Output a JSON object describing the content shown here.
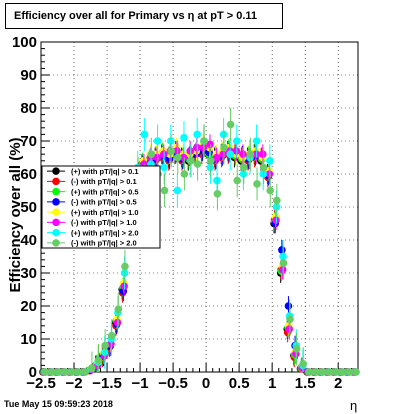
{
  "title": "Efficiency over all for Primary vs   η at pT > 0.11",
  "footer": "Tue May 15 09:59:23 2018",
  "chart_data": {
    "type": "scatter",
    "title": "Efficiency over all for Primary vs   η at pT > 0.11",
    "xlabel": "η",
    "ylabel": "Efficiency over all (%)",
    "xlim": [
      -2.5,
      2.3
    ],
    "ylim": [
      0,
      100
    ],
    "xticks": [
      "−2.5",
      "−2",
      "−1.5",
      "−1",
      "−0.5",
      "0",
      "0.5",
      "1",
      "1.5",
      "2"
    ],
    "yticks": [
      "0",
      "10",
      "20",
      "30",
      "40",
      "50",
      "60",
      "70",
      "80",
      "90",
      "100"
    ],
    "grid": true,
    "legend_placement": "middle-left",
    "x": [
      -2.45,
      -2.35,
      -2.25,
      -2.15,
      -2.05,
      -1.95,
      -1.85,
      -1.75,
      -1.65,
      -1.55,
      -1.45,
      -1.35,
      -1.25,
      -1.15,
      -1.05,
      -0.95,
      -0.85,
      -0.75,
      -0.65,
      -0.55,
      -0.45,
      -0.35,
      -0.25,
      -0.15,
      -0.05,
      0.05,
      0.15,
      0.25,
      0.35,
      0.45,
      0.55,
      0.65,
      0.75,
      0.85,
      0.95,
      1.05,
      1.15,
      1.25,
      1.35,
      1.45,
      1.55,
      1.65,
      1.75,
      1.85,
      1.95,
      2.05,
      2.15,
      2.25
    ],
    "series": [
      {
        "name": "(+) with pT/|q| > 0.1",
        "color": "#000000",
        "values": [
          0,
          0,
          0,
          0,
          0,
          0,
          0,
          0.5,
          2,
          5,
          8,
          15,
          25,
          42,
          58,
          63,
          64,
          65,
          66,
          65,
          66,
          65,
          64,
          66,
          67,
          66,
          65,
          66,
          67,
          65,
          64,
          65,
          66,
          64,
          60,
          45,
          30,
          13,
          5,
          1,
          0,
          0,
          0,
          0,
          0,
          0,
          0,
          0
        ]
      },
      {
        "name": "(-) with pT/|q| > 0.1",
        "color": "#ff0000",
        "values": [
          0,
          0,
          0,
          0,
          0,
          0,
          0,
          0.4,
          1.5,
          4.5,
          7.5,
          14,
          24,
          41,
          57,
          62,
          63,
          64,
          65,
          64,
          67,
          64,
          65,
          66,
          66,
          67,
          64,
          65,
          66,
          66,
          65,
          64,
          65,
          65,
          59,
          46,
          31,
          12,
          4.5,
          1,
          0,
          0,
          0,
          0,
          0,
          0,
          0,
          0
        ]
      },
      {
        "name": "(+) with pT/|q| > 0.5",
        "color": "#00ff00",
        "values": [
          0,
          0,
          0,
          0,
          0,
          0,
          0,
          0.6,
          2.2,
          5.2,
          8.2,
          15.5,
          25.5,
          42.5,
          58.5,
          63.5,
          64.5,
          65.5,
          66.5,
          65.5,
          66,
          65,
          64.5,
          66.5,
          67,
          66,
          65.5,
          66.5,
          67.5,
          65.5,
          64.5,
          65.5,
          66.5,
          64.5,
          60.5,
          45.5,
          30.5,
          13.5,
          5.2,
          1.2,
          0,
          0,
          0,
          0,
          0,
          0,
          0,
          0
        ]
      },
      {
        "name": "(-) with pT/|q| > 0.5",
        "color": "#0000ff",
        "values": [
          0,
          0,
          0,
          0,
          0,
          0,
          0,
          0.5,
          1.8,
          4.8,
          7.8,
          14.5,
          24.5,
          41.5,
          57.5,
          62.5,
          63.5,
          64.5,
          65.5,
          64.5,
          66.5,
          64.5,
          65.5,
          66,
          67,
          66.5,
          64.5,
          65.5,
          66.5,
          66,
          65.5,
          64.5,
          65.5,
          65,
          59.5,
          45,
          37,
          20,
          8,
          1.5,
          0,
          0,
          0,
          0,
          0,
          0,
          0,
          0
        ]
      },
      {
        "name": "(+) with pT/|q| > 1.0",
        "color": "#ffff00",
        "values": [
          0,
          0,
          0,
          0,
          0,
          0,
          0,
          0.8,
          2.5,
          5.5,
          9,
          16,
          27,
          44,
          59,
          64,
          66,
          66,
          67,
          66,
          68,
          66,
          66,
          67,
          69,
          68,
          66,
          67,
          68,
          66,
          65,
          66,
          67,
          65,
          61,
          47,
          32,
          14,
          6,
          1.5,
          0,
          0,
          0,
          0,
          0,
          0,
          0,
          0
        ]
      },
      {
        "name": "(-) with pT/|q| > 1.0",
        "color": "#ff00ff",
        "values": [
          0,
          0,
          0,
          0,
          0,
          0,
          0,
          0.7,
          2,
          5,
          8.5,
          15,
          26,
          43,
          58,
          63,
          65,
          65,
          66,
          67,
          67,
          65,
          67,
          68,
          68,
          69,
          65,
          66,
          67,
          67,
          66,
          65,
          66,
          66,
          60,
          46,
          31,
          13,
          5.5,
          1.2,
          0,
          0,
          0,
          0,
          0,
          0,
          0,
          0
        ]
      },
      {
        "name": "(+) with pT/|q| > 2.0",
        "color": "#00ffff",
        "values": [
          0,
          0,
          0,
          0,
          0,
          0,
          0,
          1,
          3,
          6,
          10,
          18,
          30,
          47,
          62,
          72,
          63,
          70,
          62,
          70,
          55,
          71,
          64,
          72,
          70,
          62,
          58,
          72,
          66,
          70,
          60,
          65,
          70,
          60,
          64,
          50,
          35,
          17,
          8,
          2,
          0,
          0,
          0,
          0,
          0,
          0,
          0,
          0
        ]
      },
      {
        "name": "(-) with pT/|q| > 2.0",
        "color": "#66cc66",
        "values": [
          0,
          0,
          0,
          0,
          0,
          0,
          0,
          1.2,
          3.5,
          8,
          11,
          19,
          32,
          45,
          60,
          58,
          66,
          60,
          55,
          67,
          65,
          60,
          64,
          63,
          70,
          64,
          54,
          68,
          75,
          58,
          62,
          66,
          57,
          62,
          55,
          52,
          33,
          16,
          7,
          2.5,
          0,
          0,
          0,
          0,
          0,
          0,
          0,
          0
        ]
      }
    ]
  }
}
